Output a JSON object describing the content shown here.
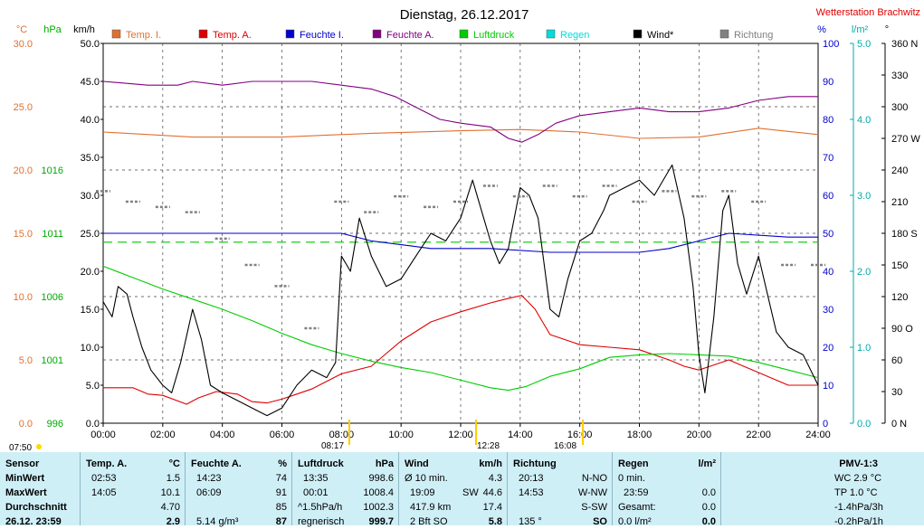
{
  "chart_data": {
    "type": "line",
    "title": "Dienstag, 26.12.2017",
    "station": "Wetterstation Brachwitz",
    "x_range_hours": [
      0,
      24
    ],
    "x_ticks": [
      "00:00",
      "02:00",
      "04:00",
      "06:00",
      "08:00",
      "10:00",
      "12:00",
      "14:00",
      "16:00",
      "18:00",
      "20:00",
      "22:00",
      "24:00"
    ],
    "axes": {
      "temp_c": {
        "label": "°C",
        "min": 0.0,
        "max": 30.0,
        "ticks": [
          "0.0",
          "5.0",
          "10.0",
          "15.0",
          "20.0",
          "25.0",
          "30.0"
        ],
        "color": "#e07030"
      },
      "pressure_hpa": {
        "label": "hPa",
        "ticks": [
          {
            "v": 996,
            "t": "996"
          },
          {
            "v": 1001,
            "t": "1001"
          },
          {
            "v": 1006,
            "t": "1006"
          },
          {
            "v": 1011,
            "t": "1011"
          },
          {
            "v": 1016,
            "t": "1016"
          }
        ],
        "color": "#00aa00"
      },
      "wind_kmh": {
        "label": "km/h",
        "min": 0.0,
        "max": 50.0,
        "ticks": [
          "0.0",
          "5.0",
          "10.0",
          "15.0",
          "20.0",
          "25.0",
          "30.0",
          "35.0",
          "40.0",
          "45.0",
          "50.0"
        ]
      },
      "humidity_pct": {
        "label": "%",
        "ticks": [
          "0",
          "10",
          "20",
          "30",
          "40",
          "50",
          "60",
          "70",
          "80",
          "90",
          "100"
        ],
        "color": "#0000cc"
      },
      "rain_lm2": {
        "label": "l/m²",
        "ticks": [
          "0.0",
          "1.0",
          "2.0",
          "3.0",
          "4.0",
          "5.0"
        ],
        "color": "#00aaaa"
      },
      "direction_deg": {
        "label": "°",
        "ticks": [
          "0 N",
          "30",
          "60",
          "90 O",
          "120",
          "150",
          "180 S",
          "210",
          "240",
          "270 W",
          "300",
          "330",
          "360 N"
        ]
      }
    },
    "legend": [
      {
        "name": "Temp. I.",
        "color": "#e07030"
      },
      {
        "name": "Temp. A.",
        "color": "#dd0000"
      },
      {
        "name": "Feuchte I.",
        "color": "#0000cc"
      },
      {
        "name": "Feuchte A.",
        "color": "#800080"
      },
      {
        "name": "Luftdruck",
        "color": "#00cc00"
      },
      {
        "name": "Regen",
        "color": "#00dddd"
      },
      {
        "name": "Wind*",
        "color": "#000000"
      },
      {
        "name": "Richtung",
        "color": "#808080"
      }
    ],
    "series": [
      {
        "key": "temp_out",
        "axis": "temp_c",
        "color": "#dd0000",
        "points": [
          [
            0,
            2.8
          ],
          [
            1,
            2.8
          ],
          [
            1.5,
            2.3
          ],
          [
            2,
            2.2
          ],
          [
            2.8,
            1.5
          ],
          [
            3.2,
            2.0
          ],
          [
            3.8,
            2.5
          ],
          [
            4.5,
            2.3
          ],
          [
            5,
            1.7
          ],
          [
            5.5,
            1.6
          ],
          [
            6,
            1.9
          ],
          [
            6.5,
            2.3
          ],
          [
            7,
            2.7
          ],
          [
            7.5,
            3.3
          ],
          [
            8,
            3.9
          ],
          [
            9,
            4.5
          ],
          [
            9.5,
            5.5
          ],
          [
            10,
            6.5
          ],
          [
            11,
            8.0
          ],
          [
            12,
            8.8
          ],
          [
            13,
            9.5
          ],
          [
            13.5,
            9.8
          ],
          [
            14.05,
            10.1
          ],
          [
            14.5,
            9.0
          ],
          [
            15,
            7.0
          ],
          [
            16,
            6.2
          ],
          [
            17,
            6.0
          ],
          [
            18,
            5.8
          ],
          [
            19,
            5.0
          ],
          [
            19.5,
            4.5
          ],
          [
            20,
            4.2
          ],
          [
            20.5,
            4.6
          ],
          [
            21,
            5.0
          ],
          [
            21.5,
            4.5
          ],
          [
            22,
            4.0
          ],
          [
            22.5,
            3.5
          ],
          [
            23,
            3.0
          ],
          [
            24,
            3.0
          ]
        ]
      },
      {
        "key": "temp_in",
        "axis": "temp_c",
        "color": "#e07030",
        "points": [
          [
            0,
            23.0
          ],
          [
            3,
            22.6
          ],
          [
            6,
            22.6
          ],
          [
            9,
            22.9
          ],
          [
            12,
            23.1
          ],
          [
            14,
            23.2
          ],
          [
            16,
            23.0
          ],
          [
            18,
            22.5
          ],
          [
            20,
            22.6
          ],
          [
            22,
            23.3
          ],
          [
            24,
            22.8
          ]
        ]
      },
      {
        "key": "hum_out",
        "axis": "humidity_pct",
        "color": "#800080",
        "points": [
          [
            0,
            90
          ],
          [
            1.5,
            89
          ],
          [
            2.5,
            89
          ],
          [
            3,
            90
          ],
          [
            4,
            89
          ],
          [
            5,
            90
          ],
          [
            6,
            90
          ],
          [
            7,
            90
          ],
          [
            8,
            89
          ],
          [
            9,
            88
          ],
          [
            9.8,
            86
          ],
          [
            10.3,
            84
          ],
          [
            10.8,
            82
          ],
          [
            11.3,
            80
          ],
          [
            12,
            79
          ],
          [
            13,
            78
          ],
          [
            13.6,
            75
          ],
          [
            14.05,
            74
          ],
          [
            14.6,
            76
          ],
          [
            15.2,
            79
          ],
          [
            16,
            81
          ],
          [
            17,
            82
          ],
          [
            18,
            83
          ],
          [
            19,
            82
          ],
          [
            20,
            82
          ],
          [
            21,
            83
          ],
          [
            22,
            85
          ],
          [
            23,
            86
          ],
          [
            24,
            86
          ]
        ]
      },
      {
        "key": "hum_in",
        "axis": "humidity_pct",
        "color": "#0000cc",
        "points": [
          [
            0,
            50
          ],
          [
            6,
            50
          ],
          [
            8,
            50
          ],
          [
            9,
            48
          ],
          [
            10,
            47
          ],
          [
            11,
            46
          ],
          [
            13,
            46
          ],
          [
            15,
            45
          ],
          [
            16,
            45
          ],
          [
            17,
            45
          ],
          [
            18,
            45
          ],
          [
            19,
            46
          ],
          [
            20,
            48
          ],
          [
            21,
            50
          ],
          [
            23,
            49
          ],
          [
            24,
            49
          ]
        ]
      },
      {
        "key": "pressure",
        "axis": "pressure_hpa",
        "color": "#00cc00",
        "points": [
          [
            0,
            1008.4
          ],
          [
            1,
            1007.5
          ],
          [
            2,
            1006.6
          ],
          [
            3,
            1005.8
          ],
          [
            4,
            1005.0
          ],
          [
            5,
            1004.1
          ],
          [
            6,
            1003.1
          ],
          [
            7,
            1002.2
          ],
          [
            8,
            1001.5
          ],
          [
            9,
            1000.9
          ],
          [
            10,
            1000.4
          ],
          [
            11,
            1000.0
          ],
          [
            12,
            999.4
          ],
          [
            13,
            998.8
          ],
          [
            13.6,
            998.6
          ],
          [
            14.2,
            998.9
          ],
          [
            15,
            999.7
          ],
          [
            16,
            1000.3
          ],
          [
            17,
            1001.2
          ],
          [
            18,
            1001.4
          ],
          [
            19,
            1001.5
          ],
          [
            20,
            1001.4
          ],
          [
            21,
            1001.3
          ],
          [
            22,
            1000.8
          ],
          [
            23,
            1000.2
          ],
          [
            24,
            999.6
          ]
        ]
      },
      {
        "key": "wind",
        "axis": "wind_kmh",
        "color": "#000000",
        "points": [
          [
            0,
            16
          ],
          [
            0.3,
            14
          ],
          [
            0.5,
            18
          ],
          [
            0.8,
            17
          ],
          [
            1,
            14
          ],
          [
            1.3,
            10
          ],
          [
            1.6,
            7
          ],
          [
            2,
            5
          ],
          [
            2.3,
            4
          ],
          [
            2.6,
            8
          ],
          [
            3,
            15
          ],
          [
            3.3,
            11
          ],
          [
            3.6,
            5
          ],
          [
            4,
            4
          ],
          [
            4.5,
            3
          ],
          [
            5,
            2
          ],
          [
            5.5,
            1
          ],
          [
            6,
            2
          ],
          [
            6.5,
            5
          ],
          [
            7,
            7
          ],
          [
            7.5,
            6
          ],
          [
            7.8,
            8
          ],
          [
            8,
            22
          ],
          [
            8.3,
            20
          ],
          [
            8.6,
            27
          ],
          [
            9,
            22
          ],
          [
            9.5,
            18
          ],
          [
            10,
            19
          ],
          [
            10.5,
            22
          ],
          [
            11,
            25
          ],
          [
            11.5,
            24
          ],
          [
            12,
            27
          ],
          [
            12.4,
            32
          ],
          [
            12.7,
            28
          ],
          [
            13,
            24
          ],
          [
            13.3,
            21
          ],
          [
            13.6,
            23
          ],
          [
            14,
            31
          ],
          [
            14.3,
            30
          ],
          [
            14.6,
            27
          ],
          [
            15,
            15
          ],
          [
            15.3,
            14
          ],
          [
            15.6,
            19
          ],
          [
            16,
            24
          ],
          [
            16.4,
            25
          ],
          [
            16.8,
            28
          ],
          [
            17,
            30
          ],
          [
            17.5,
            31
          ],
          [
            18,
            32
          ],
          [
            18.5,
            30
          ],
          [
            19.1,
            34
          ],
          [
            19.5,
            27
          ],
          [
            19.8,
            18
          ],
          [
            20,
            9
          ],
          [
            20.2,
            4
          ],
          [
            20.5,
            14
          ],
          [
            20.8,
            28
          ],
          [
            21,
            30
          ],
          [
            21.3,
            21
          ],
          [
            21.6,
            17
          ],
          [
            22,
            22
          ],
          [
            22.3,
            17
          ],
          [
            22.6,
            12
          ],
          [
            23,
            10
          ],
          [
            23.5,
            9
          ],
          [
            24,
            5
          ]
        ]
      },
      {
        "key": "direction",
        "axis": "direction_deg",
        "color": "#808080",
        "style": "dashes",
        "points": [
          [
            0,
            220
          ],
          [
            1,
            210
          ],
          [
            2,
            205
          ],
          [
            3,
            200
          ],
          [
            4,
            175
          ],
          [
            5,
            150
          ],
          [
            6,
            130
          ],
          [
            7,
            90
          ],
          [
            8,
            210
          ],
          [
            9,
            200
          ],
          [
            10,
            215
          ],
          [
            11,
            205
          ],
          [
            12,
            210
          ],
          [
            13,
            225
          ],
          [
            14,
            215
          ],
          [
            15,
            225
          ],
          [
            16,
            215
          ],
          [
            17,
            225
          ],
          [
            18,
            210
          ],
          [
            19,
            220
          ],
          [
            20,
            215
          ],
          [
            21,
            220
          ],
          [
            22,
            210
          ],
          [
            23,
            150
          ],
          [
            24,
            150
          ]
        ]
      }
    ],
    "annotations": [
      "07:50",
      "08:17",
      "12:28",
      "16:08"
    ]
  },
  "table": {
    "col_sensor": {
      "header": "Sensor",
      "rows": [
        "MinWert",
        "MaxWert",
        "Durchschnitt",
        "26.12. 23:59"
      ]
    },
    "col_temp": {
      "header": "Temp. A.",
      "unit": "°C",
      "rows": [
        [
          "02:53",
          "1.5"
        ],
        [
          "14:05",
          "10.1"
        ],
        [
          "",
          "4.70"
        ],
        [
          "",
          "2.9"
        ]
      ]
    },
    "col_hum": {
      "header": "Feuchte A.",
      "unit": "%",
      "rows": [
        [
          "14:23",
          "74"
        ],
        [
          "06:09",
          "91"
        ],
        [
          "",
          "85"
        ],
        [
          "5.14 g/m³",
          "87"
        ]
      ]
    },
    "col_press": {
      "header": "Luftdruck",
      "unit": "hPa",
      "rows": [
        [
          "13:35",
          "998.6"
        ],
        [
          "00:01",
          "1008.4"
        ],
        [
          "^1.5hPa/h",
          "1002.3"
        ],
        [
          "regnerisch",
          "999.7"
        ]
      ]
    },
    "col_wind": {
      "header": "Wind",
      "unit": "km/h",
      "rows": [
        [
          "Ø 10 min.",
          "",
          "4.3"
        ],
        [
          "19:09",
          "SW",
          "44.6"
        ],
        [
          "417.9 km",
          "",
          "17.4"
        ],
        [
          "2 Bft SO",
          "",
          "5.8"
        ]
      ]
    },
    "col_dir": {
      "header": "Richtung",
      "rows": [
        [
          "20:13",
          "N-NO"
        ],
        [
          "14:53",
          "W-NW"
        ],
        [
          "",
          "S-SW"
        ],
        [
          "135 °",
          "SO"
        ]
      ]
    },
    "col_rain": {
      "header": "Regen",
      "unit": "l/m²",
      "rows": [
        [
          "0 min.",
          ""
        ],
        [
          "23:59",
          "0.0"
        ],
        [
          "Gesamt:",
          "0.0"
        ],
        [
          "0.0 l/m²",
          "0.0"
        ]
      ]
    },
    "col_pmv": {
      "header": "PMV-1:3",
      "rows": [
        "WC 2.9 °C",
        "TP 1.0 °C",
        "-1.4hPa/3h",
        "-0.2hPa/1h"
      ]
    }
  }
}
